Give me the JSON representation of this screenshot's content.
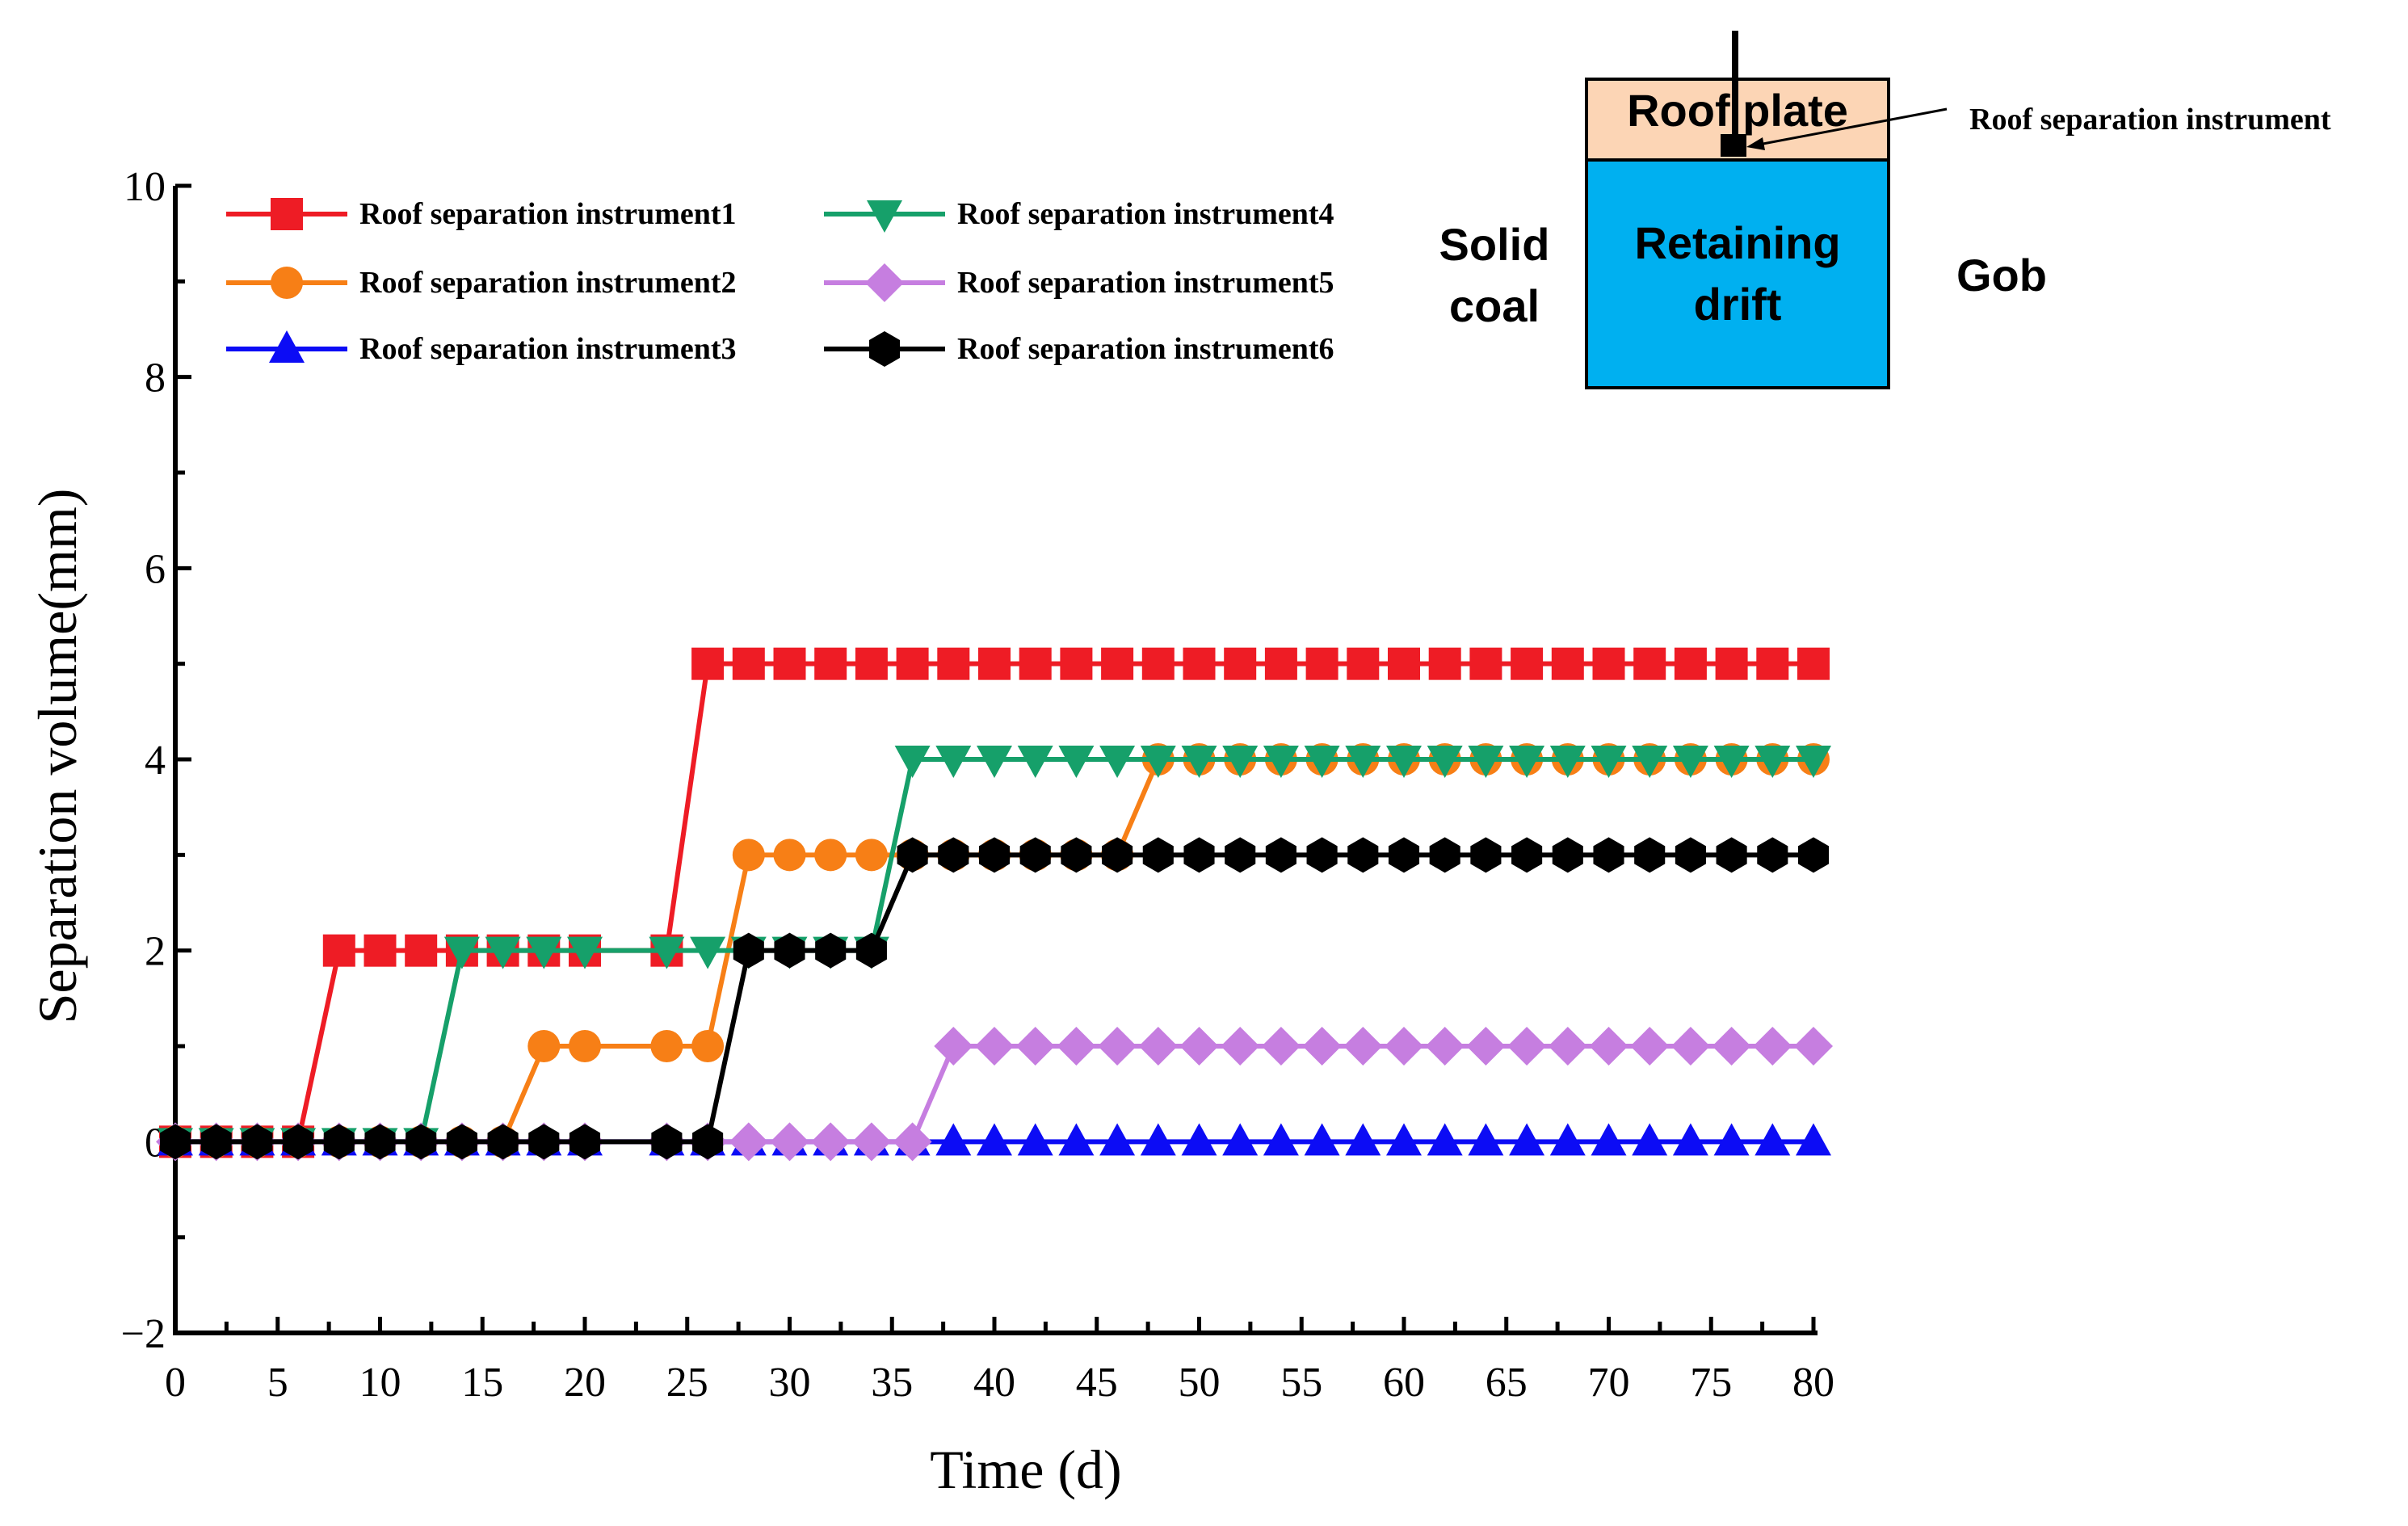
{
  "chart_data": {
    "type": "line",
    "title": "",
    "xlabel": "Time (d)",
    "ylabel": "Separation volume(mm)",
    "xlim": [
      0,
      80
    ],
    "ylim": [
      -2,
      10
    ],
    "x_ticks": [
      "0",
      "5",
      "10",
      "15",
      "20",
      "25",
      "30",
      "35",
      "40",
      "45",
      "50",
      "55",
      "60",
      "65",
      "70",
      "75",
      "80"
    ],
    "y_ticks": [
      "−2",
      "0",
      "2",
      "4",
      "6",
      "8",
      "10"
    ],
    "grid": false,
    "legend_position": "top-left",
    "series": [
      {
        "name": "Roof separation instrument1",
        "color": "#ee1c25",
        "marker": "square",
        "points": [
          [
            0,
            0
          ],
          [
            2,
            0
          ],
          [
            4,
            0
          ],
          [
            6,
            0
          ],
          [
            8,
            2
          ],
          [
            10,
            2
          ],
          [
            12,
            2
          ],
          [
            14,
            2
          ],
          [
            16,
            2
          ],
          [
            18,
            2
          ],
          [
            20,
            2
          ],
          [
            24,
            2
          ],
          [
            26,
            5
          ],
          [
            28,
            5
          ],
          [
            30,
            5
          ],
          [
            32,
            5
          ],
          [
            34,
            5
          ],
          [
            36,
            5
          ],
          [
            38,
            5
          ],
          [
            40,
            5
          ],
          [
            42,
            5
          ],
          [
            44,
            5
          ],
          [
            46,
            5
          ],
          [
            48,
            5
          ],
          [
            50,
            5
          ],
          [
            52,
            5
          ],
          [
            54,
            5
          ],
          [
            56,
            5
          ],
          [
            58,
            5
          ],
          [
            60,
            5
          ],
          [
            62,
            5
          ],
          [
            64,
            5
          ],
          [
            66,
            5
          ],
          [
            68,
            5
          ],
          [
            70,
            5
          ],
          [
            72,
            5
          ],
          [
            74,
            5
          ],
          [
            76,
            5
          ],
          [
            78,
            5
          ],
          [
            80,
            5
          ]
        ]
      },
      {
        "name": "Roof separation instrument2",
        "color": "#f77f16",
        "marker": "circle",
        "points": [
          [
            0,
            0
          ],
          [
            2,
            0
          ],
          [
            4,
            0
          ],
          [
            6,
            0
          ],
          [
            8,
            0
          ],
          [
            10,
            0
          ],
          [
            12,
            0
          ],
          [
            14,
            0
          ],
          [
            16,
            0
          ],
          [
            18,
            1
          ],
          [
            20,
            1
          ],
          [
            24,
            1
          ],
          [
            26,
            1
          ],
          [
            28,
            3
          ],
          [
            30,
            3
          ],
          [
            32,
            3
          ],
          [
            34,
            3
          ],
          [
            36,
            3
          ],
          [
            38,
            3
          ],
          [
            40,
            3
          ],
          [
            42,
            3
          ],
          [
            44,
            3
          ],
          [
            46,
            3
          ],
          [
            48,
            4
          ],
          [
            50,
            4
          ],
          [
            52,
            4
          ],
          [
            54,
            4
          ],
          [
            56,
            4
          ],
          [
            58,
            4
          ],
          [
            60,
            4
          ],
          [
            62,
            4
          ],
          [
            64,
            4
          ],
          [
            66,
            4
          ],
          [
            68,
            4
          ],
          [
            70,
            4
          ],
          [
            72,
            4
          ],
          [
            74,
            4
          ],
          [
            76,
            4
          ],
          [
            78,
            4
          ],
          [
            80,
            4
          ]
        ]
      },
      {
        "name": "Roof separation instrument3",
        "color": "#0c0cf5",
        "marker": "triangle-up",
        "points": [
          [
            0,
            0
          ],
          [
            2,
            0
          ],
          [
            4,
            0
          ],
          [
            6,
            0
          ],
          [
            8,
            0
          ],
          [
            10,
            0
          ],
          [
            12,
            0
          ],
          [
            14,
            0
          ],
          [
            16,
            0
          ],
          [
            18,
            0
          ],
          [
            20,
            0
          ],
          [
            24,
            0
          ],
          [
            26,
            0
          ],
          [
            28,
            0
          ],
          [
            30,
            0
          ],
          [
            32,
            0
          ],
          [
            34,
            0
          ],
          [
            36,
            0
          ],
          [
            38,
            0
          ],
          [
            40,
            0
          ],
          [
            42,
            0
          ],
          [
            44,
            0
          ],
          [
            46,
            0
          ],
          [
            48,
            0
          ],
          [
            50,
            0
          ],
          [
            52,
            0
          ],
          [
            54,
            0
          ],
          [
            56,
            0
          ],
          [
            58,
            0
          ],
          [
            60,
            0
          ],
          [
            62,
            0
          ],
          [
            64,
            0
          ],
          [
            66,
            0
          ],
          [
            68,
            0
          ],
          [
            70,
            0
          ],
          [
            72,
            0
          ],
          [
            74,
            0
          ],
          [
            76,
            0
          ],
          [
            78,
            0
          ],
          [
            80,
            0
          ]
        ]
      },
      {
        "name": "Roof separation instrument4",
        "color": "#16a06a",
        "marker": "triangle-down",
        "points": [
          [
            0,
            0
          ],
          [
            2,
            0
          ],
          [
            4,
            0
          ],
          [
            6,
            0
          ],
          [
            8,
            0
          ],
          [
            10,
            0
          ],
          [
            12,
            0
          ],
          [
            14,
            2
          ],
          [
            16,
            2
          ],
          [
            18,
            2
          ],
          [
            20,
            2
          ],
          [
            24,
            2
          ],
          [
            26,
            2
          ],
          [
            28,
            2
          ],
          [
            30,
            2
          ],
          [
            32,
            2
          ],
          [
            34,
            2
          ],
          [
            36,
            4
          ],
          [
            38,
            4
          ],
          [
            40,
            4
          ],
          [
            42,
            4
          ],
          [
            44,
            4
          ],
          [
            46,
            4
          ],
          [
            48,
            4
          ],
          [
            50,
            4
          ],
          [
            52,
            4
          ],
          [
            54,
            4
          ],
          [
            56,
            4
          ],
          [
            58,
            4
          ],
          [
            60,
            4
          ],
          [
            62,
            4
          ],
          [
            64,
            4
          ],
          [
            66,
            4
          ],
          [
            68,
            4
          ],
          [
            70,
            4
          ],
          [
            72,
            4
          ],
          [
            74,
            4
          ],
          [
            76,
            4
          ],
          [
            78,
            4
          ],
          [
            80,
            4
          ]
        ]
      },
      {
        "name": "Roof separation instrument5",
        "color": "#c67ee0",
        "marker": "diamond",
        "points": [
          [
            0,
            0
          ],
          [
            2,
            0
          ],
          [
            4,
            0
          ],
          [
            6,
            0
          ],
          [
            8,
            0
          ],
          [
            10,
            0
          ],
          [
            12,
            0
          ],
          [
            14,
            0
          ],
          [
            16,
            0
          ],
          [
            18,
            0
          ],
          [
            20,
            0
          ],
          [
            24,
            0
          ],
          [
            26,
            0
          ],
          [
            28,
            0
          ],
          [
            30,
            0
          ],
          [
            32,
            0
          ],
          [
            34,
            0
          ],
          [
            36,
            0
          ],
          [
            38,
            1
          ],
          [
            40,
            1
          ],
          [
            42,
            1
          ],
          [
            44,
            1
          ],
          [
            46,
            1
          ],
          [
            48,
            1
          ],
          [
            50,
            1
          ],
          [
            52,
            1
          ],
          [
            54,
            1
          ],
          [
            56,
            1
          ],
          [
            58,
            1
          ],
          [
            60,
            1
          ],
          [
            62,
            1
          ],
          [
            64,
            1
          ],
          [
            66,
            1
          ],
          [
            68,
            1
          ],
          [
            70,
            1
          ],
          [
            72,
            1
          ],
          [
            74,
            1
          ],
          [
            76,
            1
          ],
          [
            78,
            1
          ],
          [
            80,
            1
          ]
        ]
      },
      {
        "name": "Roof separation instrument6",
        "color": "#000000",
        "marker": "hexagon",
        "points": [
          [
            0,
            0
          ],
          [
            2,
            0
          ],
          [
            4,
            0
          ],
          [
            6,
            0
          ],
          [
            8,
            0
          ],
          [
            10,
            0
          ],
          [
            12,
            0
          ],
          [
            14,
            0
          ],
          [
            16,
            0
          ],
          [
            18,
            0
          ],
          [
            20,
            0
          ],
          [
            24,
            0
          ],
          [
            26,
            0
          ],
          [
            28,
            2
          ],
          [
            30,
            2
          ],
          [
            32,
            2
          ],
          [
            34,
            2
          ],
          [
            36,
            3
          ],
          [
            38,
            3
          ],
          [
            40,
            3
          ],
          [
            42,
            3
          ],
          [
            44,
            3
          ],
          [
            46,
            3
          ],
          [
            48,
            3
          ],
          [
            50,
            3
          ],
          [
            52,
            3
          ],
          [
            54,
            3
          ],
          [
            56,
            3
          ],
          [
            58,
            3
          ],
          [
            60,
            3
          ],
          [
            62,
            3
          ],
          [
            64,
            3
          ],
          [
            66,
            3
          ],
          [
            68,
            3
          ],
          [
            70,
            3
          ],
          [
            72,
            3
          ],
          [
            74,
            3
          ],
          [
            76,
            3
          ],
          [
            78,
            3
          ],
          [
            80,
            3
          ]
        ]
      }
    ],
    "inset": {
      "roof_label": "Roof plate",
      "drift_label_line1": "Retaining",
      "drift_label_line2": "drift",
      "left_label_line1": "Solid",
      "left_label_line2": "coal",
      "right_label": "Gob",
      "instrument_label": "Roof separation instrument",
      "roof_color": "#fcd5b5",
      "drift_color": "#00b0f0"
    }
  }
}
